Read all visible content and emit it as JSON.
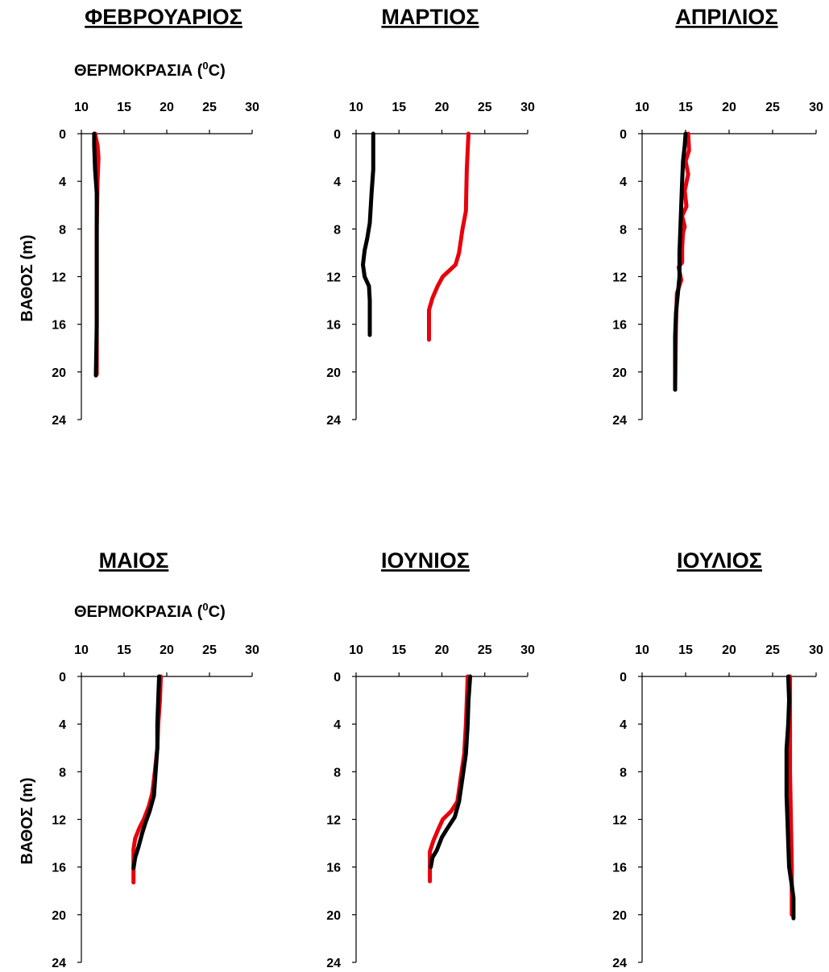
{
  "chart_data": [
    {
      "type": "line",
      "title": "ΦΕΒΡΟΥΑΡΙΟΣ",
      "xlabel": "ΘΕΡΜΟΚΡΑΣΙΑ (0C)",
      "ylabel": "ΒΑΘΟΣ (m)",
      "xlim": [
        10,
        30
      ],
      "ylim": [
        0,
        24
      ],
      "y_inverted": true,
      "x_ticks": [
        "10",
        "15",
        "20",
        "25",
        "30"
      ],
      "y_ticks": [
        "0",
        "4",
        "8",
        "12",
        "16",
        "20",
        "24"
      ],
      "series": [
        {
          "color": "#e8000b",
          "points": [
            [
              11.6,
              0
            ],
            [
              11.9,
              1
            ],
            [
              12.0,
              2
            ],
            [
              11.9,
              4
            ],
            [
              11.8,
              8
            ],
            [
              11.8,
              12
            ],
            [
              11.8,
              16
            ],
            [
              11.8,
              20.2
            ]
          ]
        },
        {
          "color": "#000000",
          "points": [
            [
              11.5,
              0
            ],
            [
              11.5,
              1
            ],
            [
              11.6,
              3
            ],
            [
              11.8,
              5
            ],
            [
              11.8,
              8
            ],
            [
              11.8,
              12
            ],
            [
              11.8,
              16
            ],
            [
              11.7,
              20.3
            ]
          ]
        }
      ]
    },
    {
      "type": "line",
      "title": "ΜΑΡΤΙΟΣ",
      "xlabel": "",
      "ylabel": "",
      "xlim": [
        10,
        30
      ],
      "ylim": [
        0,
        24
      ],
      "y_inverted": true,
      "x_ticks": [
        "10",
        "15",
        "20",
        "25",
        "30"
      ],
      "y_ticks": [
        "0",
        "4",
        "8",
        "12",
        "16",
        "20",
        "24"
      ],
      "series": [
        {
          "color": "#e8000b",
          "points": [
            [
              23.1,
              0
            ],
            [
              22.9,
              3
            ],
            [
              22.8,
              6.5
            ],
            [
              22.4,
              8
            ],
            [
              22.0,
              10
            ],
            [
              21.6,
              11
            ],
            [
              20.1,
              12
            ],
            [
              19.5,
              12.8
            ],
            [
              18.9,
              13.8
            ],
            [
              18.5,
              14.8
            ],
            [
              18.5,
              17.3
            ]
          ]
        },
        {
          "color": "#000000",
          "points": [
            [
              12.0,
              0
            ],
            [
              12.0,
              3
            ],
            [
              11.8,
              5
            ],
            [
              11.6,
              7.5
            ],
            [
              11.3,
              8.8
            ],
            [
              11.0,
              9.8
            ],
            [
              10.8,
              11
            ],
            [
              11.0,
              12
            ],
            [
              11.5,
              12.8
            ],
            [
              11.6,
              14
            ],
            [
              11.6,
              16.9
            ]
          ]
        }
      ]
    },
    {
      "type": "line",
      "title": "ΑΠΡΙΛΙΟΣ",
      "xlabel": "",
      "ylabel": "",
      "xlim": [
        10,
        30
      ],
      "ylim": [
        0,
        24
      ],
      "y_inverted": true,
      "x_ticks": [
        "10",
        "15",
        "20",
        "25",
        "30"
      ],
      "y_ticks": [
        "0",
        "4",
        "8",
        "12",
        "16",
        "20",
        "24"
      ],
      "series": [
        {
          "color": "#e8000b",
          "points": [
            [
              15.3,
              0
            ],
            [
              15.4,
              1.4
            ],
            [
              15.0,
              2.3
            ],
            [
              15.3,
              3.4
            ],
            [
              14.9,
              4.8
            ],
            [
              15.1,
              6.1
            ],
            [
              14.6,
              6.9
            ],
            [
              14.9,
              7.8
            ],
            [
              14.7,
              8.3
            ],
            [
              14.6,
              9.6
            ],
            [
              14.6,
              10.8
            ],
            [
              14.2,
              11.2
            ],
            [
              14.5,
              12.3
            ],
            [
              14.0,
              13.4
            ],
            [
              13.9,
              16
            ],
            [
              13.8,
              21.3
            ]
          ]
        },
        {
          "color": "#000000",
          "points": [
            [
              15.0,
              0
            ],
            [
              14.9,
              1
            ],
            [
              14.7,
              2.3
            ],
            [
              14.6,
              4
            ],
            [
              14.5,
              6
            ],
            [
              14.4,
              8
            ],
            [
              14.3,
              10
            ],
            [
              14.3,
              12
            ],
            [
              14.1,
              13.5
            ],
            [
              13.9,
              15
            ],
            [
              13.8,
              17
            ],
            [
              13.8,
              21.5
            ]
          ]
        }
      ]
    },
    {
      "type": "line",
      "title": "ΜΑΙΟΣ",
      "xlabel": "ΘΕΡΜΟΚΡΑΣΙΑ (0C)",
      "ylabel": "ΒΑΘΟΣ (m)",
      "xlim": [
        10,
        30
      ],
      "ylim": [
        0,
        24
      ],
      "y_inverted": true,
      "x_ticks": [
        "10",
        "15",
        "20",
        "25",
        "30"
      ],
      "y_ticks": [
        "0",
        "4",
        "8",
        "12",
        "16",
        "20",
        "24"
      ],
      "series": [
        {
          "color": "#e8000b",
          "points": [
            [
              19.3,
              0
            ],
            [
              19.2,
              2
            ],
            [
              19.0,
              4
            ],
            [
              18.9,
              6
            ],
            [
              18.6,
              8
            ],
            [
              18.3,
              9.8
            ],
            [
              17.9,
              10.9
            ],
            [
              17.3,
              12.0
            ],
            [
              16.8,
              12.7
            ],
            [
              16.3,
              13.6
            ],
            [
              16.1,
              14.5
            ],
            [
              16.1,
              17.3
            ]
          ]
        },
        {
          "color": "#000000",
          "points": [
            [
              19.1,
              0
            ],
            [
              19.0,
              2
            ],
            [
              18.9,
              4
            ],
            [
              18.9,
              6
            ],
            [
              18.7,
              8
            ],
            [
              18.5,
              10
            ],
            [
              18.0,
              11.3
            ],
            [
              17.5,
              12.3
            ],
            [
              17.1,
              13.2
            ],
            [
              16.7,
              14.3
            ],
            [
              16.3,
              15.2
            ],
            [
              16.1,
              16.1
            ]
          ]
        }
      ]
    },
    {
      "type": "line",
      "title": "ΙΟΥΝΙΟΣ",
      "xlabel": "",
      "ylabel": "",
      "xlim": [
        10,
        30
      ],
      "ylim": [
        0,
        24
      ],
      "y_inverted": true,
      "x_ticks": [
        "10",
        "15",
        "20",
        "25",
        "30"
      ],
      "y_ticks": [
        "0",
        "4",
        "8",
        "12",
        "16",
        "20",
        "24"
      ],
      "series": [
        {
          "color": "#e8000b",
          "points": [
            [
              23.0,
              0
            ],
            [
              22.9,
              2
            ],
            [
              22.8,
              4
            ],
            [
              22.6,
              6.5
            ],
            [
              22.2,
              8.5
            ],
            [
              21.8,
              10.5
            ],
            [
              21.1,
              11.3
            ],
            [
              20.1,
              12.0
            ],
            [
              19.6,
              12.8
            ],
            [
              19.0,
              13.8
            ],
            [
              18.6,
              14.7
            ],
            [
              18.6,
              17.2
            ]
          ]
        },
        {
          "color": "#000000",
          "points": [
            [
              23.3,
              0
            ],
            [
              23.1,
              2
            ],
            [
              23.0,
              4
            ],
            [
              22.8,
              6.5
            ],
            [
              22.4,
              8.5
            ],
            [
              22.0,
              10.5
            ],
            [
              21.5,
              11.8
            ],
            [
              20.6,
              12.8
            ],
            [
              20.0,
              13.5
            ],
            [
              19.4,
              14.6
            ],
            [
              18.9,
              15.2
            ],
            [
              18.7,
              16.0
            ]
          ]
        }
      ]
    },
    {
      "type": "line",
      "title": "ΙΟΥΛΙΟΣ",
      "xlabel": "",
      "ylabel": "",
      "xlim": [
        10,
        30
      ],
      "ylim": [
        0,
        24
      ],
      "y_inverted": true,
      "x_ticks": [
        "10",
        "15",
        "20",
        "25",
        "30"
      ],
      "y_ticks": [
        "0",
        "4",
        "8",
        "12",
        "16",
        "20",
        "24"
      ],
      "series": [
        {
          "color": "#e8000b",
          "points": [
            [
              27.0,
              0
            ],
            [
              27.0,
              4
            ],
            [
              27.0,
              8
            ],
            [
              27.1,
              12
            ],
            [
              27.2,
              16
            ],
            [
              27.2,
              20.0
            ]
          ]
        },
        {
          "color": "#000000",
          "points": [
            [
              26.8,
              0
            ],
            [
              26.9,
              2
            ],
            [
              26.8,
              4
            ],
            [
              26.6,
              6.1
            ],
            [
              26.6,
              8
            ],
            [
              26.6,
              10
            ],
            [
              26.7,
              12
            ],
            [
              26.8,
              14
            ],
            [
              26.9,
              16
            ],
            [
              27.2,
              17.5
            ],
            [
              27.4,
              18.6
            ],
            [
              27.4,
              20.3
            ]
          ]
        }
      ]
    }
  ]
}
